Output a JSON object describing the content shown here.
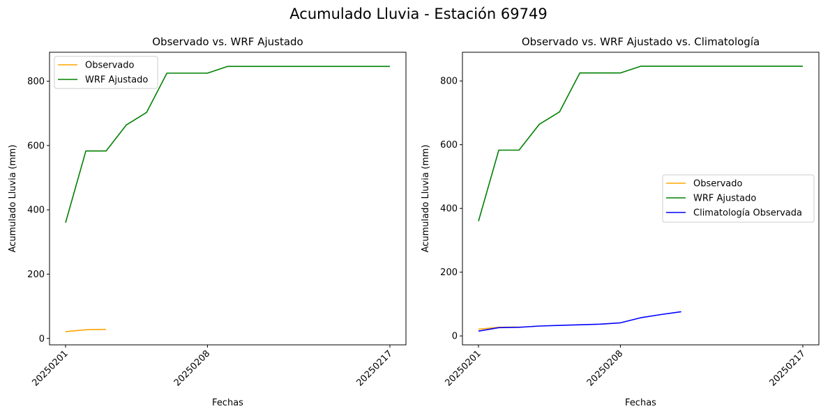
{
  "figure": {
    "suptitle": "Acumulado Lluvia - Estación 69749"
  },
  "chart_data": [
    {
      "type": "line",
      "title": "Observado vs. WRF Ajustado",
      "xlabel": "Fechas",
      "ylabel": "Acumulado Lluvia (mm)",
      "x_dates": [
        "20250201",
        "20250202",
        "20250203",
        "20250204",
        "20250205",
        "20250206",
        "20250207",
        "20250208",
        "20250209",
        "20250210",
        "20250211",
        "20250212",
        "20250213",
        "20250214",
        "20250215",
        "20250216",
        "20250217"
      ],
      "xticks": [
        "20250201",
        "20250208",
        "20250217"
      ],
      "ylim": [
        -20,
        890
      ],
      "yticks": [
        0,
        200,
        400,
        600,
        800
      ],
      "legend_position": "upper-left",
      "series": [
        {
          "name": "Observado",
          "color": "#ffa500",
          "values": [
            21,
            27,
            28,
            null,
            null,
            null,
            null,
            null,
            null,
            null,
            null,
            null,
            null,
            null,
            null,
            null,
            null
          ]
        },
        {
          "name": "WRF Ajustado",
          "color": "#008000",
          "values": [
            360,
            583,
            583,
            664,
            703,
            825,
            825,
            825,
            846,
            846,
            846,
            846,
            846,
            846,
            846,
            846,
            846
          ]
        }
      ]
    },
    {
      "type": "line",
      "title": "Observado vs. WRF Ajustado vs. Climatología",
      "xlabel": "Fechas",
      "ylabel": "Acumulado Lluvia (mm)",
      "x_dates": [
        "20250201",
        "20250202",
        "20250203",
        "20250204",
        "20250205",
        "20250206",
        "20250207",
        "20250208",
        "20250209",
        "20250210",
        "20250211",
        "20250212",
        "20250213",
        "20250214",
        "20250215",
        "20250216",
        "20250217"
      ],
      "xticks": [
        "20250201",
        "20250208",
        "20250217"
      ],
      "ylim": [
        -28,
        890
      ],
      "yticks": [
        0,
        200,
        400,
        600,
        800
      ],
      "legend_position": "center-right",
      "series": [
        {
          "name": "Observado",
          "color": "#ffa500",
          "values": [
            21,
            27,
            28,
            null,
            null,
            null,
            null,
            null,
            null,
            null,
            null,
            null,
            null,
            null,
            null,
            null,
            null
          ]
        },
        {
          "name": "WRF Ajustado",
          "color": "#008000",
          "values": [
            360,
            583,
            583,
            664,
            703,
            825,
            825,
            825,
            846,
            846,
            846,
            846,
            846,
            846,
            846,
            846,
            846
          ]
        },
        {
          "name": "Climatología Observada",
          "color": "#0000ff",
          "values": [
            15,
            26,
            27,
            31,
            33,
            35,
            37,
            41,
            57,
            67,
            76,
            null,
            null,
            null,
            null,
            null,
            null
          ]
        }
      ]
    }
  ]
}
